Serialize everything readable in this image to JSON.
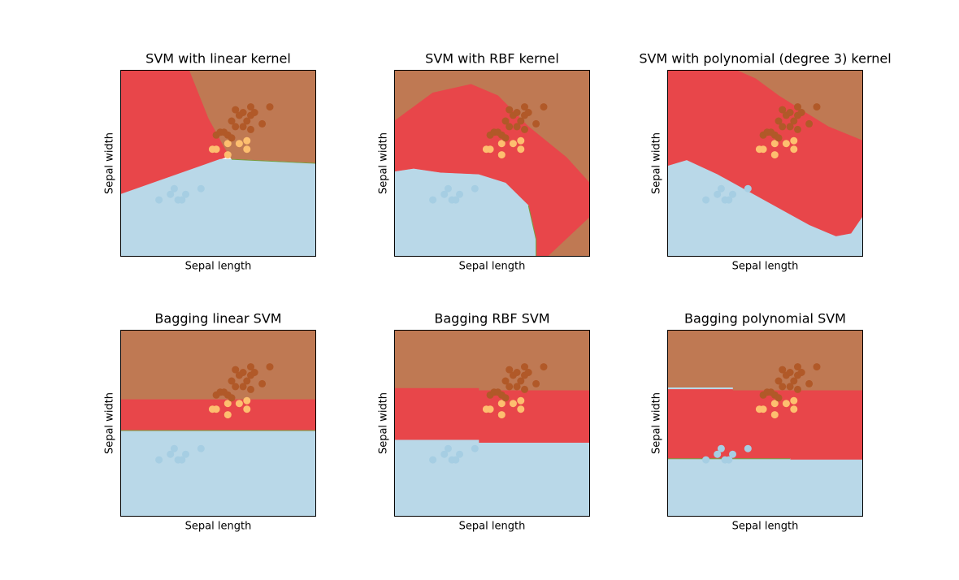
{
  "figure": {
    "background": "#ffffff"
  },
  "colors": {
    "class_light_blue": "#b9d8e8",
    "class_red": "#e8464a",
    "class_brown": "#bf7953",
    "point_light_blue": "#a6cee3",
    "point_orange": "#fdbf6f",
    "point_brown": "#b15928",
    "boundary_line": "#7a9a3a"
  },
  "points": [
    {
      "x": 4.3,
      "y": 3.0,
      "cls": 0
    },
    {
      "x": 4.6,
      "y": 3.1,
      "cls": 0
    },
    {
      "x": 4.7,
      "y": 3.2,
      "cls": 0
    },
    {
      "x": 4.8,
      "y": 3.0,
      "cls": 0
    },
    {
      "x": 4.9,
      "y": 3.0,
      "cls": 0
    },
    {
      "x": 5.0,
      "y": 3.1,
      "cls": 0
    },
    {
      "x": 5.4,
      "y": 3.2,
      "cls": 0
    },
    {
      "x": 5.7,
      "y": 3.9,
      "cls": 1
    },
    {
      "x": 5.8,
      "y": 3.9,
      "cls": 1
    },
    {
      "x": 6.1,
      "y": 3.8,
      "cls": 1
    },
    {
      "x": 6.1,
      "y": 4.0,
      "cls": 1
    },
    {
      "x": 6.4,
      "y": 4.0,
      "cls": 1
    },
    {
      "x": 6.6,
      "y": 3.9,
      "cls": 1
    },
    {
      "x": 6.6,
      "y": 4.05,
      "cls": 1
    },
    {
      "x": 5.8,
      "y": 4.15,
      "cls": 2
    },
    {
      "x": 5.9,
      "y": 4.2,
      "cls": 2
    },
    {
      "x": 6.0,
      "y": 4.2,
      "cls": 2
    },
    {
      "x": 6.1,
      "y": 4.15,
      "cls": 2
    },
    {
      "x": 6.2,
      "y": 4.1,
      "cls": 2
    },
    {
      "x": 6.2,
      "y": 4.4,
      "cls": 2
    },
    {
      "x": 6.3,
      "y": 4.3,
      "cls": 2
    },
    {
      "x": 6.3,
      "y": 4.6,
      "cls": 2
    },
    {
      "x": 6.4,
      "y": 4.5,
      "cls": 2
    },
    {
      "x": 6.5,
      "y": 4.3,
      "cls": 2
    },
    {
      "x": 6.5,
      "y": 4.55,
      "cls": 2
    },
    {
      "x": 6.6,
      "y": 4.4,
      "cls": 2
    },
    {
      "x": 6.7,
      "y": 4.25,
      "cls": 2
    },
    {
      "x": 6.7,
      "y": 4.5,
      "cls": 2
    },
    {
      "x": 6.7,
      "y": 4.65,
      "cls": 2
    },
    {
      "x": 6.8,
      "y": 4.55,
      "cls": 2
    },
    {
      "x": 7.0,
      "y": 4.35,
      "cls": 2
    },
    {
      "x": 7.2,
      "y": 4.65,
      "cls": 2
    }
  ],
  "chart_data": [
    {
      "type": "scatter",
      "title": "SVM with linear kernel",
      "xlabel": "Sepal length",
      "ylabel": "Sepal width",
      "xlim": [
        3.3,
        8.4
      ],
      "ylim": [
        2.0,
        5.3
      ],
      "grid": false,
      "show_ticks": false,
      "regions": [
        {
          "cls": 1,
          "polygon": [
            [
              3.3,
              5.3
            ],
            [
              5.1,
              5.3
            ],
            [
              5.6,
              4.45
            ],
            [
              6.0,
              3.95
            ],
            [
              6.2,
              3.8
            ],
            [
              5.9,
              3.72
            ],
            [
              3.3,
              3.1
            ]
          ]
        },
        {
          "cls": 2,
          "polygon": [
            [
              5.1,
              5.3
            ],
            [
              8.4,
              5.3
            ],
            [
              8.4,
              3.65
            ],
            [
              6.2,
              3.72
            ],
            [
              6.0,
              3.95
            ],
            [
              5.6,
              4.45
            ]
          ]
        },
        {
          "cls": 0,
          "polygon": [
            [
              3.3,
              2.0
            ],
            [
              8.4,
              2.0
            ],
            [
              8.4,
              3.65
            ],
            [
              6.2,
              3.72
            ],
            [
              5.9,
              3.72
            ],
            [
              3.3,
              3.1
            ]
          ]
        }
      ],
      "boundaries": [
        [
          [
            6.2,
            3.72
          ],
          [
            8.4,
            3.65
          ]
        ]
      ]
    },
    {
      "type": "scatter",
      "title": "SVM with RBF kernel",
      "xlabel": "Sepal length",
      "ylabel": "Sepal width",
      "xlim": [
        3.3,
        8.4
      ],
      "ylim": [
        2.0,
        5.3
      ],
      "grid": false,
      "show_ticks": false,
      "regions": [
        {
          "cls": 2,
          "polygon": [
            [
              3.3,
              5.3
            ],
            [
              8.4,
              5.3
            ],
            [
              8.4,
              2.0
            ],
            [
              7.3,
              2.0
            ],
            [
              8.4,
              2.7
            ],
            [
              8.4,
              3.3
            ],
            [
              7.8,
              3.75
            ],
            [
              6.8,
              4.3
            ],
            [
              6.0,
              4.85
            ],
            [
              5.3,
              5.05
            ],
            [
              4.3,
              4.9
            ],
            [
              3.6,
              4.55
            ],
            [
              3.3,
              4.4
            ]
          ]
        },
        {
          "cls": 1,
          "polygon": [
            [
              3.3,
              4.4
            ],
            [
              3.6,
              4.55
            ],
            [
              4.3,
              4.9
            ],
            [
              5.3,
              5.05
            ],
            [
              6.0,
              4.85
            ],
            [
              6.8,
              4.3
            ],
            [
              7.8,
              3.75
            ],
            [
              8.4,
              3.3
            ],
            [
              8.4,
              2.7
            ],
            [
              7.3,
              2.0
            ],
            [
              7.0,
              2.0
            ],
            [
              7.0,
              2.3
            ],
            [
              6.8,
              2.9
            ],
            [
              6.2,
              3.3
            ],
            [
              5.5,
              3.45
            ],
            [
              4.5,
              3.48
            ],
            [
              3.8,
              3.55
            ],
            [
              3.3,
              3.5
            ]
          ]
        },
        {
          "cls": 0,
          "polygon": [
            [
              3.3,
              2.0
            ],
            [
              7.0,
              2.0
            ],
            [
              7.0,
              2.3
            ],
            [
              6.8,
              2.9
            ],
            [
              6.2,
              3.3
            ],
            [
              5.5,
              3.45
            ],
            [
              4.5,
              3.48
            ],
            [
              3.8,
              3.55
            ],
            [
              3.3,
              3.5
            ]
          ]
        }
      ],
      "boundaries": [
        [
          [
            7.0,
            2.0
          ],
          [
            7.0,
            2.3
          ],
          [
            6.8,
            2.9
          ]
        ]
      ]
    },
    {
      "type": "scatter",
      "title": "SVM with polynomial (degree 3) kernel",
      "xlabel": "Sepal length",
      "ylabel": "Sepal width",
      "xlim": [
        3.3,
        8.4
      ],
      "ylim": [
        2.0,
        5.3
      ],
      "grid": false,
      "show_ticks": false,
      "regions": [
        {
          "cls": 2,
          "polygon": [
            [
              5.1,
              5.3
            ],
            [
              8.4,
              5.3
            ],
            [
              8.4,
              4.05
            ],
            [
              7.5,
              4.3
            ],
            [
              6.9,
              4.55
            ],
            [
              6.2,
              4.85
            ],
            [
              5.6,
              5.15
            ]
          ]
        },
        {
          "cls": 1,
          "polygon": [
            [
              3.3,
              5.3
            ],
            [
              5.1,
              5.3
            ],
            [
              5.6,
              5.15
            ],
            [
              6.2,
              4.85
            ],
            [
              6.9,
              4.55
            ],
            [
              7.5,
              4.3
            ],
            [
              8.4,
              4.05
            ],
            [
              8.4,
              2.7
            ],
            [
              8.1,
              2.4
            ],
            [
              7.7,
              2.35
            ],
            [
              7.0,
              2.55
            ],
            [
              6.2,
              2.85
            ],
            [
              5.4,
              3.15
            ],
            [
              4.6,
              3.45
            ],
            [
              3.8,
              3.7
            ],
            [
              3.3,
              3.6
            ]
          ]
        },
        {
          "cls": 0,
          "polygon": [
            [
              3.3,
              2.0
            ],
            [
              8.4,
              2.0
            ],
            [
              8.4,
              2.7
            ],
            [
              8.1,
              2.4
            ],
            [
              7.7,
              2.35
            ],
            [
              7.0,
              2.55
            ],
            [
              6.2,
              2.85
            ],
            [
              5.4,
              3.15
            ],
            [
              4.6,
              3.45
            ],
            [
              3.8,
              3.7
            ],
            [
              3.3,
              3.6
            ]
          ]
        }
      ],
      "boundaries": []
    },
    {
      "type": "scatter",
      "title": "Bagging linear SVM",
      "xlabel": "Sepal length",
      "ylabel": "Sepal width",
      "xlim": [
        3.3,
        8.4
      ],
      "ylim": [
        2.0,
        5.3
      ],
      "grid": false,
      "show_ticks": false,
      "regions": [
        {
          "cls": 2,
          "polygon": [
            [
              3.3,
              5.3
            ],
            [
              8.4,
              5.3
            ],
            [
              8.4,
              4.07
            ],
            [
              3.3,
              4.07
            ]
          ]
        },
        {
          "cls": 1,
          "polygon": [
            [
              3.3,
              4.07
            ],
            [
              8.4,
              4.07
            ],
            [
              8.4,
              3.52
            ],
            [
              3.3,
              3.52
            ]
          ]
        },
        {
          "cls": 0,
          "polygon": [
            [
              3.3,
              3.52
            ],
            [
              8.4,
              3.52
            ],
            [
              8.4,
              2.0
            ],
            [
              3.3,
              2.0
            ]
          ]
        }
      ],
      "boundaries": [
        [
          [
            3.3,
            3.52
          ],
          [
            8.4,
            3.52
          ]
        ]
      ]
    },
    {
      "type": "scatter",
      "title": "Bagging RBF SVM",
      "xlabel": "Sepal length",
      "ylabel": "Sepal width",
      "xlim": [
        3.3,
        8.4
      ],
      "ylim": [
        2.0,
        5.3
      ],
      "grid": false,
      "show_ticks": false,
      "regions": [
        {
          "cls": 2,
          "polygon": [
            [
              3.3,
              5.3
            ],
            [
              8.4,
              5.3
            ],
            [
              8.4,
              4.23
            ],
            [
              5.5,
              4.23
            ],
            [
              5.5,
              4.27
            ],
            [
              3.3,
              4.27
            ]
          ]
        },
        {
          "cls": 1,
          "polygon": [
            [
              3.3,
              4.27
            ],
            [
              5.5,
              4.27
            ],
            [
              5.5,
              4.23
            ],
            [
              8.4,
              4.23
            ],
            [
              8.4,
              3.3
            ],
            [
              5.5,
              3.3
            ],
            [
              5.5,
              3.35
            ],
            [
              3.3,
              3.35
            ]
          ]
        },
        {
          "cls": 0,
          "polygon": [
            [
              3.3,
              3.35
            ],
            [
              5.5,
              3.35
            ],
            [
              5.5,
              3.3
            ],
            [
              8.4,
              3.3
            ],
            [
              8.4,
              2.0
            ],
            [
              3.3,
              2.0
            ]
          ]
        }
      ],
      "boundaries": []
    },
    {
      "type": "scatter",
      "title": "Bagging polynomial SVM",
      "xlabel": "Sepal length",
      "ylabel": "Sepal width",
      "xlim": [
        3.3,
        8.4
      ],
      "ylim": [
        2.0,
        5.3
      ],
      "grid": false,
      "show_ticks": false,
      "regions": [
        {
          "cls": 2,
          "polygon": [
            [
              3.3,
              5.3
            ],
            [
              8.4,
              5.3
            ],
            [
              8.4,
              4.23
            ],
            [
              5.0,
              4.23
            ],
            [
              5.0,
              4.28
            ],
            [
              3.3,
              4.28
            ]
          ]
        },
        {
          "cls": 0,
          "polygon": [
            [
              3.3,
              4.28
            ],
            [
              5.0,
              4.28
            ],
            [
              5.0,
              4.25
            ],
            [
              3.3,
              4.25
            ]
          ]
        },
        {
          "cls": 1,
          "polygon": [
            [
              3.3,
              4.25
            ],
            [
              5.0,
              4.25
            ],
            [
              5.0,
              4.23
            ],
            [
              8.4,
              4.23
            ],
            [
              8.4,
              3.0
            ],
            [
              6.5,
              3.0
            ],
            [
              6.5,
              3.02
            ],
            [
              3.3,
              3.02
            ]
          ]
        },
        {
          "cls": 0,
          "polygon": [
            [
              3.3,
              3.02
            ],
            [
              6.5,
              3.02
            ],
            [
              6.5,
              3.0
            ],
            [
              8.4,
              3.0
            ],
            [
              8.4,
              2.0
            ],
            [
              3.3,
              2.0
            ]
          ]
        }
      ],
      "boundaries": [
        [
          [
            3.3,
            3.02
          ],
          [
            6.5,
            3.02
          ]
        ]
      ]
    }
  ]
}
